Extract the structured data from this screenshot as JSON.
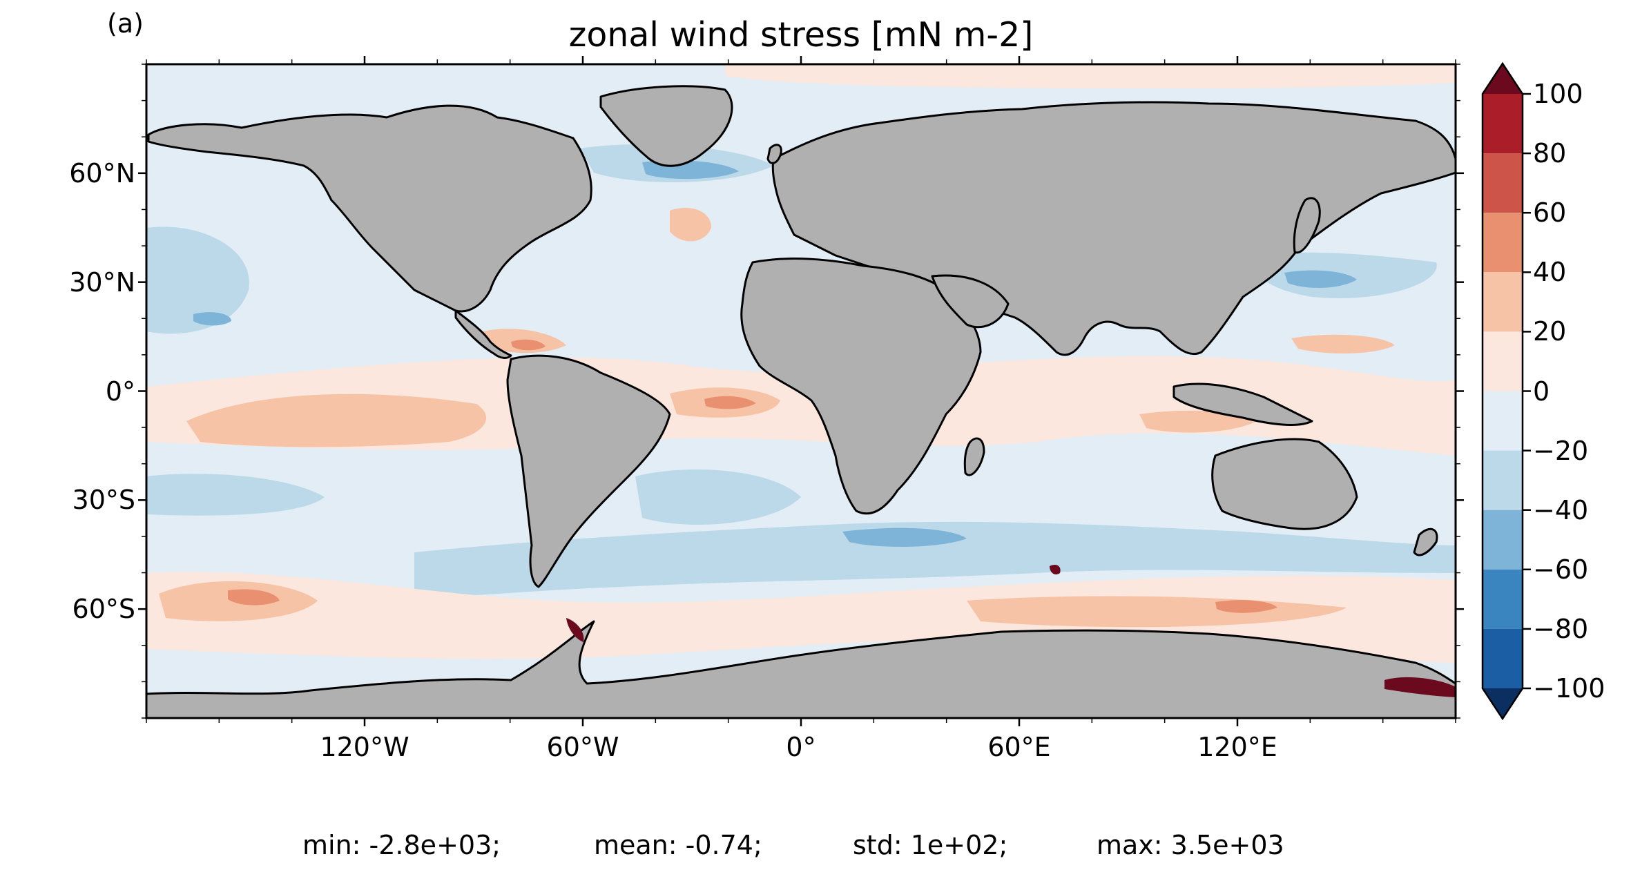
{
  "panel_label": "(a)",
  "title": "zonal wind stress [mN m-2]",
  "colors": {
    "land": "#b0b0b0",
    "coast": "#000000",
    "levels": [
      "#0b2f61",
      "#1c5ea3",
      "#3a85c0",
      "#7eb4d8",
      "#bcd9ea",
      "#e2edf5",
      "#fbe7dd",
      "#f7c3a7",
      "#e8906f",
      "#cc5448",
      "#ac1d2a",
      "#6b0a1e"
    ]
  },
  "map": {
    "lon_ticks": [
      "120°W",
      "60°W",
      "0°",
      "60°E",
      "120°E"
    ],
    "lat_ticks": [
      "60°N",
      "30°N",
      "0°",
      "30°S",
      "60°S"
    ],
    "lon_tick_values": [
      -120,
      -60,
      0,
      60,
      120
    ],
    "lat_tick_values": [
      60,
      30,
      0,
      -30,
      -60
    ],
    "lon_range": [
      -180,
      180
    ],
    "lat_range": [
      -90,
      90
    ]
  },
  "colorbar": {
    "ticks": [
      "100",
      "80",
      "60",
      "40",
      "20",
      "0",
      "−20",
      "−40",
      "−60",
      "−80",
      "−100"
    ],
    "tick_values": [
      100,
      80,
      60,
      40,
      20,
      0,
      -20,
      -40,
      -60,
      -80,
      -100
    ],
    "extend": "both"
  },
  "stats": {
    "min": "min: -2.8e+03;",
    "mean": "mean: -0.74;",
    "std": "std: 1e+02;",
    "max": "max: 3.5e+03"
  }
}
